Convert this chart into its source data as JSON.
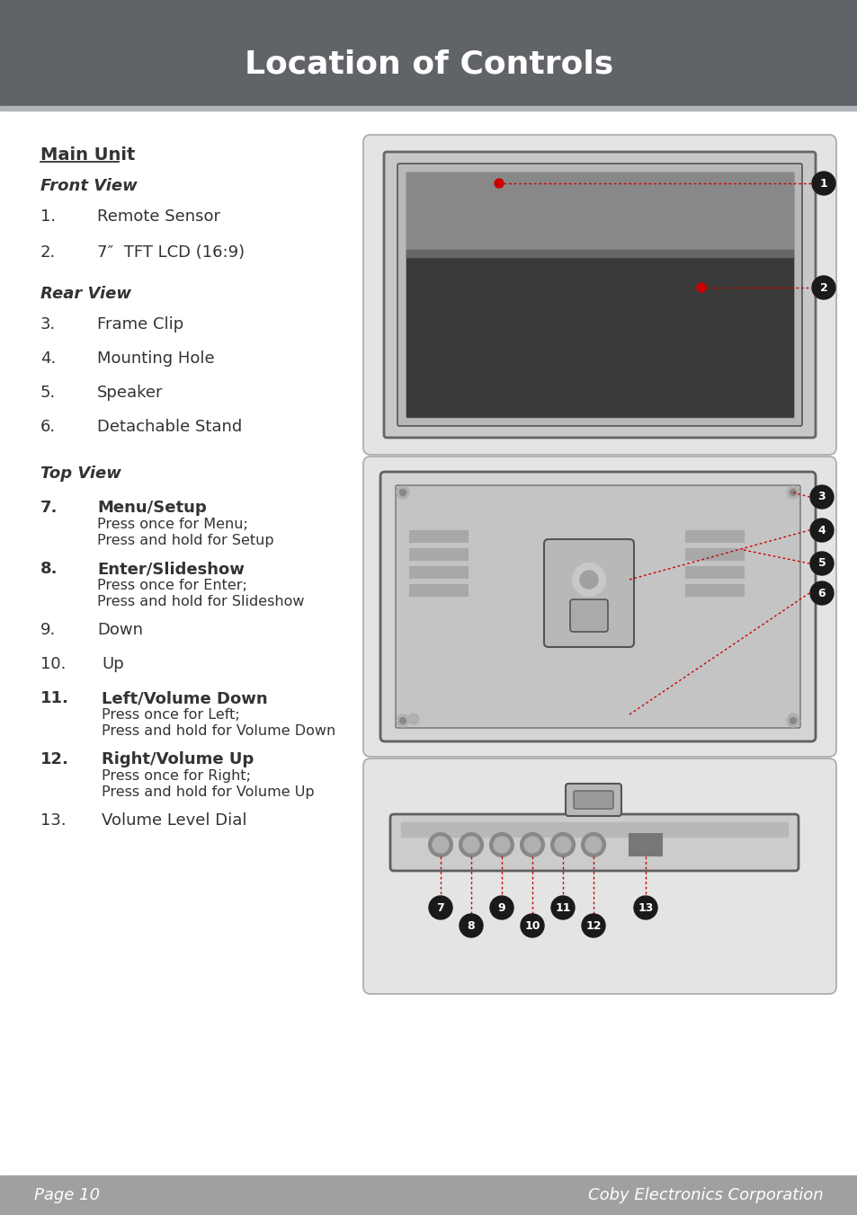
{
  "title": "Location of Controls",
  "title_bg": "#606368",
  "title_color": "#ffffff",
  "footer_bg": "#a0a0a0",
  "footer_left": "Page 10",
  "footer_right": "Coby Electronics Corporation",
  "footer_color": "#ffffff",
  "body_bg": "#ffffff",
  "main_unit_label": "Main Unit",
  "front_view_label": "Front View",
  "rear_view_label": "Rear View",
  "top_view_label": "Top View",
  "label_color": "#333333",
  "red_color": "#cc0000",
  "circle_bg": "#1a1a1a",
  "circle_text": "#ffffff",
  "sep_color": "#b0b4b8"
}
